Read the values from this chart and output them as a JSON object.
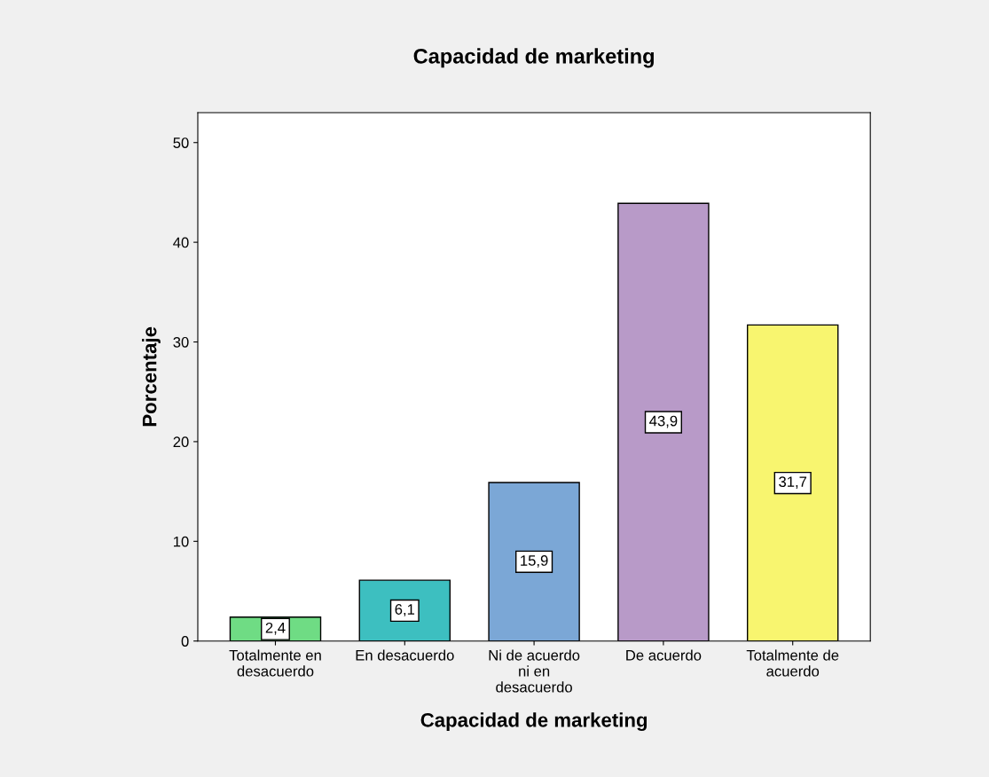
{
  "chart_data": {
    "type": "bar",
    "title": "Capacidad de marketing",
    "xlabel": "Capacidad de marketing",
    "ylabel": "Porcentaje",
    "categories": [
      "Totalmente en\ndesacuerdo",
      "En desacuerdo",
      "Ni de acuerdo\nni en\ndesacuerdo",
      "De acuerdo",
      "Totalmente de\nacuerdo"
    ],
    "values": [
      2.4,
      6.1,
      15.9,
      43.9,
      31.7
    ],
    "colors": [
      "#6fdc84",
      "#3dbfc0",
      "#7ba7d6",
      "#b89ac8",
      "#f8f56f"
    ],
    "value_labels": [
      "2,4",
      "6,1",
      "15,9",
      "43,9",
      "31,7"
    ],
    "ylim": [
      0,
      53
    ],
    "yticks": [
      0,
      10,
      20,
      30,
      40,
      50
    ],
    "grid": false
  }
}
